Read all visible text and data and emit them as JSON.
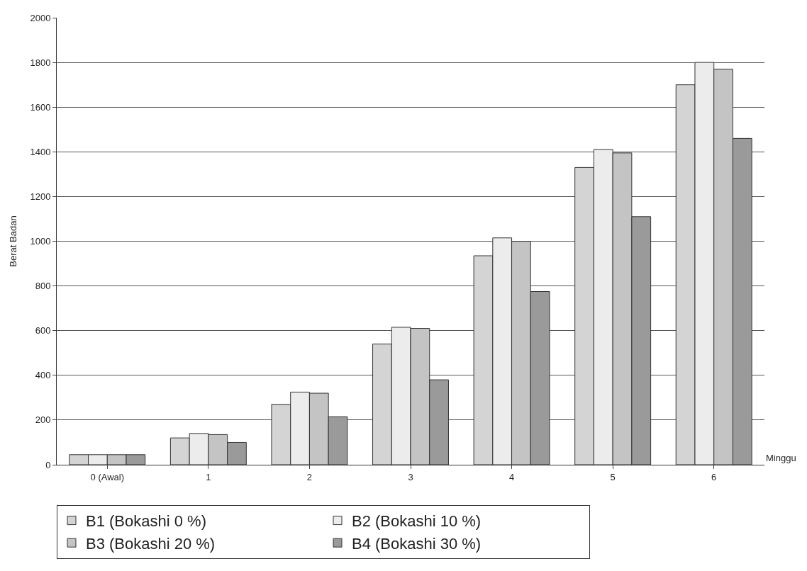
{
  "chart_data": {
    "type": "bar",
    "xlabel": "Minggu",
    "ylabel": "Berat Badan",
    "categories": [
      "0 (Awal)",
      "1",
      "2",
      "3",
      "4",
      "5",
      "6"
    ],
    "series": [
      {
        "name": "B1 (Bokashi 0 %)",
        "color": "#d4d4d4",
        "values": [
          45,
          120,
          270,
          540,
          935,
          1330,
          1700
        ]
      },
      {
        "name": "B2 (Bokashi 10 %)",
        "color": "#ececec",
        "values": [
          45,
          140,
          325,
          615,
          1015,
          1410,
          1800
        ]
      },
      {
        "name": "B3 (Bokashi 20 %)",
        "color": "#c4c4c4",
        "values": [
          45,
          135,
          320,
          610,
          1000,
          1395,
          1770
        ]
      },
      {
        "name": "B4 (Bokashi 30 %)",
        "color": "#9a9a9a",
        "values": [
          45,
          100,
          215,
          380,
          775,
          1110,
          1460
        ]
      }
    ],
    "ylim": [
      0,
      2000
    ],
    "yticks": [
      0,
      200,
      400,
      600,
      800,
      1000,
      1200,
      1400,
      1600,
      1800,
      2000
    ],
    "grid": "y",
    "legend": "bottom"
  }
}
